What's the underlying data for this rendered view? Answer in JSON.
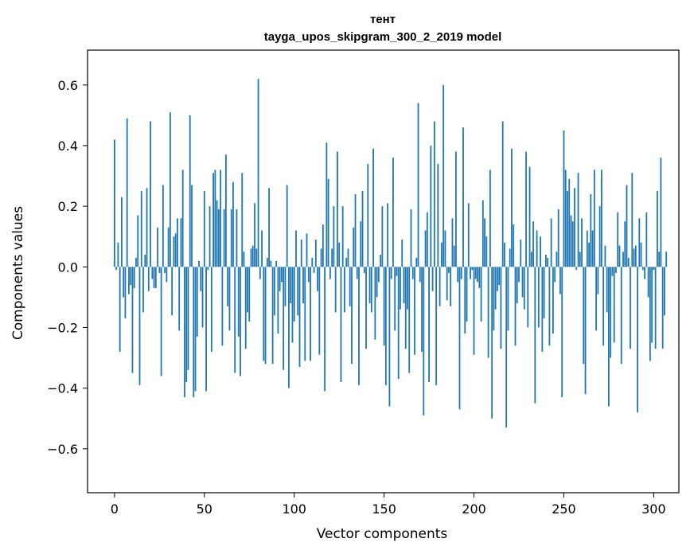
{
  "chart_data": {
    "type": "bar",
    "title": "тент",
    "subtitle": "tayga_upos_skipgram_300_2_2019 model",
    "xlabel": "Vector components",
    "ylabel": "Components values",
    "xlim": [
      -15,
      314
    ],
    "ylim": [
      -0.745,
      0.715
    ],
    "xticks": [
      0,
      50,
      100,
      150,
      200,
      250,
      300
    ],
    "yticks": [
      -0.6,
      -0.4,
      -0.2,
      0.0,
      0.2,
      0.4,
      0.6
    ],
    "ytick_labels": [
      "−0.6",
      "−0.4",
      "−0.2",
      "0.0",
      "0.2",
      "0.4",
      "0.6"
    ],
    "bar_color": "#1f77b4",
    "grid": false,
    "values": [
      0.42,
      -0.01,
      0.08,
      -0.28,
      0.23,
      -0.1,
      -0.17,
      0.49,
      -0.09,
      -0.06,
      -0.35,
      -0.07,
      0.03,
      0.17,
      -0.39,
      0.25,
      -0.15,
      0.04,
      0.26,
      -0.08,
      0.48,
      -0.04,
      -0.07,
      -0.07,
      0.13,
      -0.02,
      -0.36,
      0.27,
      -0.02,
      -0.05,
      0.13,
      0.51,
      -0.16,
      0.1,
      0.11,
      0.16,
      -0.21,
      0.16,
      0.32,
      -0.43,
      -0.38,
      -0.34,
      0.5,
      0.27,
      -0.43,
      -0.41,
      -0.23,
      0.02,
      -0.08,
      -0.2,
      0.25,
      -0.41,
      -0.01,
      0.2,
      -0.28,
      0.31,
      0.32,
      0.22,
      0.19,
      0.32,
      -0.26,
      0.19,
      0.37,
      -0.13,
      -0.21,
      0.19,
      0.28,
      -0.35,
      0.19,
      -0.23,
      -0.36,
      0.31,
      0.05,
      -0.27,
      -0.15,
      -0.18,
      0.06,
      0.07,
      0.21,
      0.06,
      0.62,
      -0.04,
      0.12,
      -0.31,
      -0.32,
      0.03,
      0.26,
      0.02,
      -0.32,
      -0.16,
      0.02,
      -0.22,
      -0.08,
      -0.05,
      -0.34,
      -0.13,
      0.27,
      -0.4,
      -0.12,
      -0.25,
      -0.18,
      0.12,
      -0.16,
      -0.33,
      0.09,
      -0.12,
      -0.31,
      0.11,
      -0.05,
      -0.31,
      0.03,
      -0.02,
      0.09,
      -0.08,
      -0.29,
      0.06,
      0.14,
      -0.41,
      0.41,
      0.29,
      -0.04,
      0.06,
      0.2,
      -0.15,
      0.38,
      0.08,
      -0.38,
      0.2,
      -0.15,
      0.03,
      0.06,
      -0.13,
      -0.32,
      0.13,
      0.24,
      -0.04,
      -0.39,
      0.15,
      0.25,
      -0.02,
      -0.27,
      0.34,
      -0.12,
      -0.15,
      0.39,
      -0.24,
      -0.1,
      -0.05,
      0.04,
      0.2,
      -0.26,
      -0.39,
      0.21,
      -0.46,
      -0.04,
      0.36,
      -0.21,
      -0.03,
      -0.37,
      -0.14,
      0.09,
      -0.12,
      -0.27,
      -0.14,
      -0.35,
      0.19,
      -0.04,
      -0.29,
      0.03,
      0.54,
      -0.05,
      -0.28,
      -0.49,
      0.12,
      0.18,
      -0.38,
      0.4,
      -0.08,
      0.48,
      -0.39,
      0.34,
      -0.13,
      0.08,
      0.6,
      0.12,
      -0.11,
      -0.02,
      -0.13,
      0.16,
      0.07,
      0.38,
      -0.05,
      -0.47,
      -0.04,
      0.46,
      -0.22,
      -0.18,
      0.21,
      -0.04,
      -0.01,
      -0.29,
      -0.04,
      -0.05,
      -0.07,
      -0.18,
      0.22,
      0.16,
      0.1,
      -0.3,
      0.32,
      -0.5,
      -0.21,
      -0.14,
      -0.08,
      -0.06,
      -0.27,
      0.48,
      0.08,
      -0.53,
      -0.21,
      0.06,
      0.39,
      0.14,
      -0.26,
      -0.12,
      -0.05,
      0.09,
      -0.1,
      -0.14,
      0.38,
      -0.2,
      0.33,
      0.05,
      0.15,
      -0.45,
      0.12,
      -0.2,
      0.1,
      -0.28,
      -0.17,
      0.04,
      0.03,
      -0.26,
      0.16,
      -0.22,
      -0.05,
      0.05,
      0.19,
      -0.09,
      -0.43,
      0.45,
      0.32,
      0.25,
      0.29,
      0.17,
      0.15,
      0.26,
      -0.01,
      0.31,
      0.05,
      0.16,
      -0.32,
      -0.42,
      0.12,
      0.08,
      0.24,
      0.12,
      0.32,
      -0.21,
      -0.09,
      0.2,
      0.32,
      -0.26,
      0.07,
      -0.15,
      -0.46,
      -0.3,
      -0.03,
      -0.25,
      -0.02,
      0.18,
      0.07,
      -0.32,
      0.05,
      0.15,
      0.27,
      0.03,
      -0.27,
      0.31,
      0.06,
      0.07,
      -0.48,
      0.16,
      0.08,
      -0.01,
      -0.04,
      0.18,
      -0.1,
      -0.31,
      -0.25,
      -0.01,
      -0.27,
      0.25,
      0.05,
      0.36,
      -0.27,
      -0.16,
      0.05
    ]
  }
}
